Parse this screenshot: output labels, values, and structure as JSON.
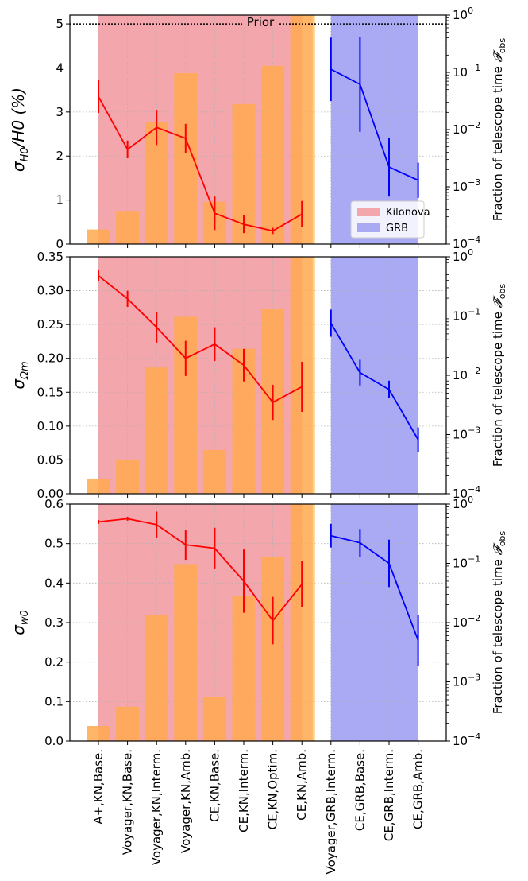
{
  "colors": {
    "kilonova": "#f4a6ad",
    "grb": "#a9aaf3",
    "bar": "#ffa94f",
    "kn_line": "#ff0000",
    "grb_line": "#0000ff",
    "edge_bar": "#ffcf7c"
  },
  "chart_data": {
    "type": "bar",
    "categories": [
      "A+,KN,Base.",
      "Voyager,KN,Base.",
      "Voyager,KN,Interm.",
      "Voyager,KN,Amb.",
      "CE,KN,Base.",
      "CE,KN,Interm.",
      "CE,KN,Optim.",
      "CE,KN,Amb.",
      "Voyager,GRB,Interm.",
      "CE,GRB,Base.",
      "CE,GRB,Interm.",
      "CE,GRB,Amb."
    ],
    "legend": {
      "placement": "lower-right",
      "entries": [
        "Kilonova",
        "GRB"
      ]
    },
    "shaded_regions": [
      {
        "name": "Kilonova",
        "from_category": "A+,KN,Base.",
        "to_category": "CE,KN,Amb."
      },
      {
        "name": "GRB",
        "from_category": "Voyager,GRB,Interm.",
        "to_category": "CE,GRB,Amb."
      }
    ],
    "telescope_time_bars": {
      "axis": "right",
      "values": [
        0.00018,
        0.00038,
        0.0135,
        0.097,
        0.00055,
        0.028,
        0.13,
        1.0,
        null,
        null,
        null,
        null
      ]
    },
    "panels": [
      {
        "ylabel": "σ_{H0}/H0 (%)",
        "ylim": [
          0,
          5.2
        ],
        "yticks": [
          "0",
          "1",
          "2",
          "3",
          "4",
          "5"
        ],
        "ytick_values": [
          0,
          1,
          2,
          3,
          4,
          5
        ],
        "right_ylabel": "Fraction of telescope time",
        "right_ylabel_symbol": "𝓕",
        "right_ylabel_sub": "obs",
        "right_scale": "log",
        "right_ylim": [
          0.0001,
          1
        ],
        "right_ticks": [
          {
            "base": "10",
            "exp": "0"
          },
          {
            "base": "10",
            "exp": "−1"
          },
          {
            "base": "10",
            "exp": "−2"
          },
          {
            "base": "10",
            "exp": "−3"
          },
          {
            "base": "10",
            "exp": "−4"
          }
        ],
        "prior": {
          "value": 5.0,
          "label": "Prior"
        },
        "show_legend": true,
        "kn_values": [
          3.35,
          2.15,
          2.65,
          2.4,
          0.7,
          0.45,
          0.3,
          0.68
        ],
        "kn_err": [
          0.37,
          0.2,
          0.4,
          0.33,
          0.38,
          0.2,
          0.07,
          0.3
        ],
        "grb_values": [
          3.97,
          3.63,
          1.75,
          1.45
        ],
        "grb_err": [
          0.72,
          1.08,
          0.67,
          0.4
        ]
      },
      {
        "ylabel": "σ_{Ωm}",
        "ylim": [
          0,
          0.35
        ],
        "yticks": [
          "0.00",
          "0.05",
          "0.10",
          "0.15",
          "0.20",
          "0.25",
          "0.30",
          "0.35"
        ],
        "ytick_values": [
          0,
          0.05,
          0.1,
          0.15,
          0.2,
          0.25,
          0.3,
          0.35
        ],
        "right_ylabel": "Fraction of telescope time",
        "right_ylabel_symbol": "𝓕",
        "right_ylabel_sub": "obs",
        "right_scale": "log",
        "right_ylim": [
          0.0001,
          1
        ],
        "right_ticks": [
          {
            "base": "10",
            "exp": "0"
          },
          {
            "base": "10",
            "exp": "−1"
          },
          {
            "base": "10",
            "exp": "−2"
          },
          {
            "base": "10",
            "exp": "−3"
          },
          {
            "base": "10",
            "exp": "−4"
          }
        ],
        "show_legend": false,
        "kn_values": [
          0.322,
          0.288,
          0.246,
          0.2,
          0.221,
          0.19,
          0.135,
          0.158
        ],
        "kn_err": [
          0.008,
          0.012,
          0.023,
          0.026,
          0.025,
          0.024,
          0.026,
          0.037
        ],
        "grb_values": [
          0.252,
          0.179,
          0.154,
          0.08
        ],
        "grb_err": [
          0.02,
          0.019,
          0.013,
          0.018
        ]
      },
      {
        "ylabel": "σ_{w0}",
        "ylim": [
          0,
          0.6
        ],
        "yticks": [
          "0.0",
          "0.1",
          "0.2",
          "0.3",
          "0.4",
          "0.5",
          "0.6"
        ],
        "ytick_values": [
          0,
          0.1,
          0.2,
          0.3,
          0.4,
          0.5,
          0.6
        ],
        "right_ylabel": "Fraction of telescope time",
        "right_ylabel_symbol": "𝓕",
        "right_ylabel_sub": "obs",
        "right_scale": "log",
        "right_ylim": [
          0.0001,
          1
        ],
        "right_ticks": [
          {
            "base": "10",
            "exp": "0"
          },
          {
            "base": "10",
            "exp": "−1"
          },
          {
            "base": "10",
            "exp": "−2"
          },
          {
            "base": "10",
            "exp": "−3"
          },
          {
            "base": "10",
            "exp": "−4"
          }
        ],
        "show_legend": false,
        "kn_values": [
          0.555,
          0.563,
          0.548,
          0.497,
          0.488,
          0.405,
          0.305,
          0.397
        ],
        "kn_err": [
          0.005,
          0.005,
          0.033,
          0.038,
          0.052,
          0.08,
          0.06,
          0.058
        ],
        "grb_values": [
          0.52,
          0.502,
          0.45,
          0.255
        ],
        "grb_err": [
          0.03,
          0.035,
          0.06,
          0.065
        ]
      }
    ]
  }
}
